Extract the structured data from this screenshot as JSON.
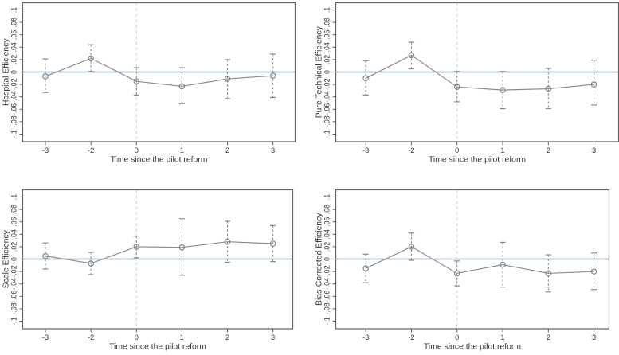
{
  "figure": {
    "description": "2x2 grid of event-study coefficient plots with 95% confidence intervals",
    "layout": "2x2",
    "xlabel": "Time since the pilot reform",
    "x_tick_labels": [
      "-3",
      "-2",
      "0",
      "1",
      "2",
      "3"
    ],
    "y_tick_labels": [
      "-.1",
      "-.08",
      "-.06",
      "-.04",
      "-.02",
      "0",
      ".02",
      ".04",
      ".06",
      ".08",
      ".1"
    ],
    "y_tick_values": [
      -0.1,
      -0.08,
      -0.06,
      -0.04,
      -0.02,
      0,
      0.02,
      0.04,
      0.06,
      0.08,
      0.1
    ],
    "ylim": [
      -0.112,
      0.112
    ],
    "grid": false,
    "legend": "none",
    "reference_lines": {
      "horizontal_zero_line": 0,
      "vertical_event_line_at_x_label": "0",
      "vertical_event_line_style": "dashed"
    },
    "colors": {
      "series": "#8a8a8a",
      "marker": "#7f8386",
      "zero_line": "#a6bdd2",
      "event_line": "#c9d4cf",
      "axis": "#606060",
      "text": "#333333",
      "background": "#ffffff"
    }
  },
  "chart_data": [
    {
      "type": "line",
      "subtype": "coefficient-plot-with-error-bars",
      "ylabel": "Hospital Efficiency",
      "xlabel": "Time since the pilot reform",
      "x": [
        -3,
        -2,
        0,
        1,
        2,
        3
      ],
      "estimates": [
        -0.007,
        0.022,
        -0.015,
        -0.023,
        -0.011,
        -0.006
      ],
      "ci_low": [
        -0.033,
        0.001,
        -0.037,
        -0.051,
        -0.043,
        -0.041
      ],
      "ci_high": [
        0.021,
        0.044,
        0.007,
        0.007,
        0.02,
        0.029
      ],
      "ylim": [
        -0.1,
        0.1
      ]
    },
    {
      "type": "line",
      "subtype": "coefficient-plot-with-error-bars",
      "ylabel": "Pure Technical Efficiency",
      "xlabel": "Time since the pilot reform",
      "x": [
        -3,
        -2,
        0,
        1,
        2,
        3
      ],
      "estimates": [
        -0.01,
        0.027,
        -0.024,
        -0.029,
        -0.027,
        -0.02
      ],
      "ci_low": [
        -0.037,
        0.005,
        -0.048,
        -0.059,
        -0.059,
        -0.053
      ],
      "ci_high": [
        0.018,
        0.048,
        0.001,
        0.001,
        0.006,
        0.019
      ],
      "ylim": [
        -0.1,
        0.1
      ]
    },
    {
      "type": "line",
      "subtype": "coefficient-plot-with-error-bars",
      "ylabel": "Scale Efficiency",
      "xlabel": "Time since the pilot reform",
      "x": [
        -3,
        -2,
        0,
        1,
        2,
        3
      ],
      "estimates": [
        0.005,
        -0.007,
        0.02,
        0.019,
        0.028,
        0.025
      ],
      "ci_low": [
        -0.016,
        -0.025,
        0.002,
        -0.026,
        -0.005,
        -0.004
      ],
      "ci_high": [
        0.026,
        0.011,
        0.037,
        0.065,
        0.061,
        0.054
      ],
      "ylim": [
        -0.1,
        0.1
      ]
    },
    {
      "type": "line",
      "subtype": "coefficient-plot-with-error-bars",
      "ylabel": "Bias-Corrected Efficiency",
      "xlabel": "Time since the pilot reform",
      "x": [
        -3,
        -2,
        0,
        1,
        2,
        3
      ],
      "estimates": [
        -0.015,
        0.02,
        -0.023,
        -0.009,
        -0.023,
        -0.02
      ],
      "ci_low": [
        -0.038,
        -0.002,
        -0.043,
        -0.045,
        -0.053,
        -0.049
      ],
      "ci_high": [
        0.008,
        0.042,
        -0.003,
        0.027,
        0.007,
        0.01
      ],
      "ylim": [
        -0.1,
        0.1
      ]
    }
  ]
}
